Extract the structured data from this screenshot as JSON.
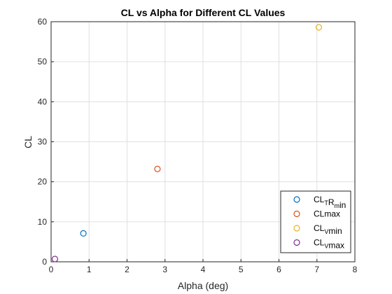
{
  "chart_data": {
    "type": "scatter",
    "title": "CL vs Alpha for Different CL Values",
    "xlabel": "Alpha (deg)",
    "ylabel": "CL",
    "xlim": [
      0,
      8
    ],
    "ylim": [
      0,
      60
    ],
    "xticks": [
      0,
      1,
      2,
      3,
      4,
      5,
      6,
      7,
      8
    ],
    "yticks": [
      0,
      10,
      20,
      30,
      40,
      50,
      60
    ],
    "grid": true,
    "legend_position": "bottom-right",
    "series": [
      {
        "name": "CL_TR_min",
        "legend": {
          "base": "CL",
          "sub1": "T",
          "mid": "R",
          "sub2": "m",
          "tail": "in"
        },
        "color": "#0072BD",
        "points": [
          [
            0.85,
            7.1
          ]
        ]
      },
      {
        "name": "CLmax",
        "legend": {
          "base": "CLmax",
          "sub1": "",
          "mid": "",
          "sub2": "",
          "tail": ""
        },
        "color": "#D95319",
        "points": [
          [
            2.8,
            23.2
          ]
        ]
      },
      {
        "name": "CL_Vmin",
        "legend": {
          "base": "CL",
          "sub1": "V",
          "mid": "min",
          "sub2": "",
          "tail": ""
        },
        "color": "#EDB120",
        "points": [
          [
            7.05,
            58.6
          ]
        ]
      },
      {
        "name": "CL_Vmax",
        "legend": {
          "base": "CL",
          "sub1": "V",
          "mid": "max",
          "sub2": "",
          "tail": ""
        },
        "color": "#7E2F8E",
        "points": [
          [
            0.1,
            0.7
          ]
        ]
      }
    ]
  }
}
